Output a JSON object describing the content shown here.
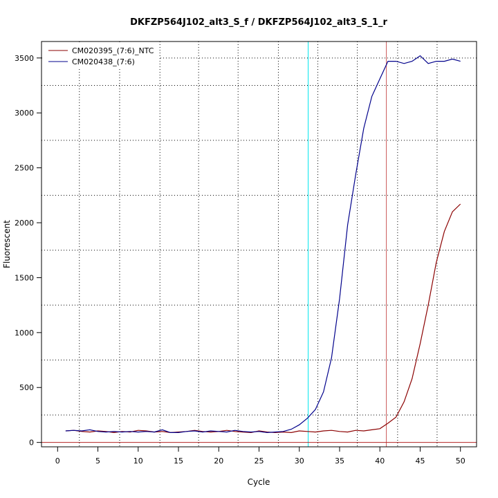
{
  "chart_data": {
    "type": "line",
    "title": "DKFZP564J102_alt3_S_f / DKFZP564J102_alt3_S_1_r",
    "xlabel": "Cycle",
    "ylabel": "Fluorescent",
    "xlim": [
      -2,
      52
    ],
    "ylim": [
      -40,
      3650
    ],
    "xticks": [
      0,
      5,
      10,
      15,
      20,
      25,
      30,
      35,
      40,
      45,
      50
    ],
    "yticks": [
      0,
      500,
      1000,
      1500,
      2000,
      2500,
      3000,
      3500
    ],
    "x_gridlines": [
      2.7,
      7.7,
      12.7,
      17.5,
      22.4,
      27.4,
      32.3,
      37.2,
      42.2,
      47.1
    ],
    "y_gridlines": [
      250,
      750,
      1250,
      1750,
      2250,
      2750,
      3250,
      3500
    ],
    "threshold_line": {
      "y": 0,
      "color": "#b22222"
    },
    "vertical_markers": [
      {
        "x": 31.1,
        "color": "#00e5ee"
      },
      {
        "x": 40.8,
        "color": "#cd5c5c"
      }
    ],
    "legend": {
      "position": "top-left"
    },
    "series": [
      {
        "name": "CM020395_(7:6)_NTC",
        "color": "#8b0000",
        "x": [
          1,
          2,
          3,
          4,
          5,
          6,
          7,
          8,
          9,
          10,
          11,
          12,
          13,
          14,
          15,
          16,
          17,
          18,
          19,
          20,
          21,
          22,
          23,
          24,
          25,
          26,
          27,
          28,
          29,
          30,
          31,
          32,
          33,
          34,
          35,
          36,
          37,
          38,
          39,
          40,
          41,
          42,
          43,
          44,
          45,
          46,
          47,
          48,
          49,
          50
        ],
        "y": [
          105,
          110,
          100,
          95,
          105,
          100,
          90,
          100,
          95,
          110,
          105,
          95,
          100,
          90,
          95,
          100,
          110,
          100,
          95,
          100,
          110,
          100,
          95,
          90,
          105,
          95,
          90,
          95,
          90,
          105,
          100,
          95,
          105,
          110,
          100,
          95,
          110,
          105,
          115,
          125,
          175,
          230,
          370,
          580,
          900,
          1250,
          1640,
          1920,
          2100,
          2170
        ]
      },
      {
        "name": "CM020438_(7:6)",
        "color": "#00008b",
        "x": [
          1,
          2,
          3,
          4,
          5,
          6,
          7,
          8,
          9,
          10,
          11,
          12,
          13,
          14,
          15,
          16,
          17,
          18,
          19,
          20,
          21,
          22,
          23,
          24,
          25,
          26,
          27,
          28,
          29,
          30,
          31,
          32,
          33,
          34,
          35,
          36,
          37,
          38,
          39,
          40,
          41,
          42,
          43,
          44,
          45,
          46,
          47,
          48,
          49,
          50
        ],
        "y": [
          105,
          110,
          105,
          115,
          100,
          95,
          100,
          95,
          100,
          95,
          100,
          95,
          115,
          90,
          90,
          100,
          105,
          95,
          105,
          100,
          95,
          110,
          100,
          95,
          100,
          90,
          95,
          100,
          120,
          160,
          220,
          300,
          460,
          770,
          1310,
          1980,
          2440,
          2860,
          3150,
          3310,
          3470,
          3470,
          3450,
          3470,
          3520,
          3450,
          3470,
          3470,
          3490,
          3470
        ]
      }
    ]
  }
}
